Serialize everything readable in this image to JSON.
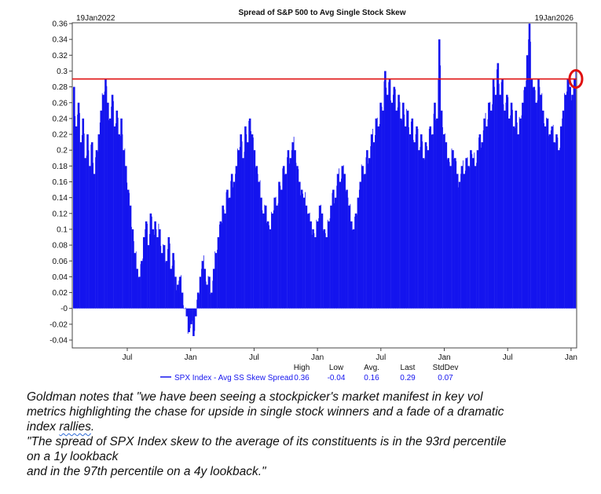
{
  "chart_data": {
    "type": "bar",
    "title": "Spread of S&P 500 to Avg Single Stock Skew",
    "start_label": "19Jan2022",
    "end_label": "19Jan2026",
    "ylim": [
      -0.05,
      0.36
    ],
    "y_ticks": [
      "0.36",
      "0.34",
      "0.32",
      "0.3",
      "0.28",
      "0.26",
      "0.24",
      "0.22",
      "0.2",
      "0.18",
      "0.16",
      "0.14",
      "0.12",
      "0.1",
      "0.08",
      "0.06",
      "0.04",
      "0.02",
      "-0",
      "-0.02",
      "-0.04"
    ],
    "x_tick_labels": [
      "Jul",
      "Jan",
      "Jul",
      "Jan",
      "Jul",
      "Jan",
      "Jul",
      "Jan"
    ],
    "reference_line": 0.29,
    "reference_color": "#e01010",
    "bar_color": "#1414ee",
    "series": [
      {
        "name": "SPX Index - Avg SS Skew Spread",
        "values": [
          0.28,
          0.23,
          0.26,
          0.21,
          0.24,
          0.19,
          0.22,
          0.18,
          0.21,
          0.17,
          0.2,
          0.22,
          0.25,
          0.27,
          0.29,
          0.26,
          0.24,
          0.27,
          0.23,
          0.25,
          0.22,
          0.24,
          0.2,
          0.18,
          0.15,
          0.13,
          0.1,
          0.07,
          0.05,
          0.04,
          0.06,
          0.09,
          0.11,
          0.08,
          0.12,
          0.1,
          0.11,
          0.09,
          0.1,
          0.07,
          0.08,
          0.06,
          0.09,
          0.05,
          0.07,
          0.04,
          0.03,
          0.04,
          0.02,
          0.0,
          -0.01,
          -0.03,
          -0.02,
          -0.035,
          -0.01,
          0.02,
          0.04,
          0.06,
          0.05,
          0.03,
          0.04,
          0.02,
          0.05,
          0.07,
          0.09,
          0.11,
          0.13,
          0.12,
          0.15,
          0.14,
          0.17,
          0.16,
          0.18,
          0.2,
          0.22,
          0.19,
          0.23,
          0.21,
          0.24,
          0.22,
          0.2,
          0.18,
          0.16,
          0.14,
          0.12,
          0.13,
          0.11,
          0.1,
          0.12,
          0.14,
          0.13,
          0.16,
          0.15,
          0.18,
          0.17,
          0.2,
          0.19,
          0.21,
          0.2,
          0.18,
          0.16,
          0.15,
          0.14,
          0.13,
          0.12,
          0.11,
          0.1,
          0.09,
          0.11,
          0.13,
          0.12,
          0.1,
          0.09,
          0.11,
          0.13,
          0.15,
          0.14,
          0.17,
          0.16,
          0.18,
          0.17,
          0.15,
          0.13,
          0.11,
          0.1,
          0.12,
          0.14,
          0.16,
          0.18,
          0.17,
          0.2,
          0.19,
          0.22,
          0.21,
          0.24,
          0.23,
          0.26,
          0.25,
          0.3,
          0.27,
          0.29,
          0.26,
          0.28,
          0.25,
          0.27,
          0.24,
          0.26,
          0.23,
          0.25,
          0.22,
          0.24,
          0.21,
          0.23,
          0.2,
          0.22,
          0.19,
          0.21,
          0.2,
          0.23,
          0.22,
          0.26,
          0.24,
          0.34,
          0.25,
          0.22,
          0.21,
          0.19,
          0.18,
          0.2,
          0.19,
          0.17,
          0.16,
          0.18,
          0.17,
          0.19,
          0.18,
          0.2,
          0.19,
          0.18,
          0.2,
          0.22,
          0.21,
          0.24,
          0.23,
          0.26,
          0.25,
          0.29,
          0.27,
          0.31,
          0.27,
          0.29,
          0.25,
          0.27,
          0.24,
          0.26,
          0.23,
          0.25,
          0.22,
          0.24,
          0.26,
          0.28,
          0.32,
          0.36,
          0.29,
          0.28,
          0.26,
          0.29,
          0.27,
          0.25,
          0.23,
          0.24,
          0.22,
          0.23,
          0.21,
          0.22,
          0.2,
          0.23,
          0.25,
          0.27,
          0.29,
          0.28,
          0.27,
          0.29
        ]
      }
    ],
    "stats_headers": [
      "High",
      "Low",
      "Avg.",
      "Last",
      "StdDev"
    ],
    "stats_values": [
      "0.36",
      "-0.04",
      "0.16",
      "0.29",
      "0.07"
    ]
  },
  "note": {
    "line1": "Goldman notes that \"we have been seeing a stockpicker's market manifest in key vol",
    "line2": "metrics highlighting the chase for upside in single stock winners and a fade of a dramatic",
    "line3a": "index ",
    "line3b": "rallies",
    "line3c": ".",
    "line4": "\"The spread of SPX Index skew to the average of its constituents is in the 93rd percentile",
    "line5": "on a 1y lookback",
    "line6": "and in the 97th percentile on a 4y lookback.\""
  }
}
